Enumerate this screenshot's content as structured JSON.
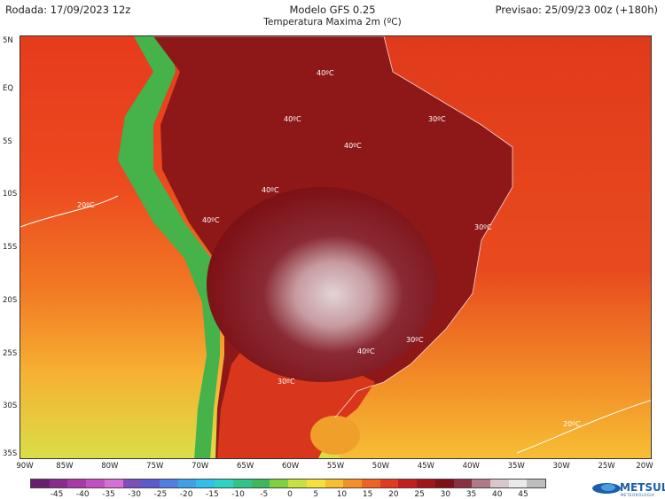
{
  "header": {
    "run": "Rodada: 17/09/2023 12z",
    "model": "Modelo GFS 0.25",
    "variable": "Temperatura Maxima 2m (ºC)",
    "forecast": "Previsao: 25/09/23 00z (+180h)"
  },
  "map": {
    "lat_labels": [
      "5N",
      "EQ",
      "5S",
      "10S",
      "15S",
      "20S",
      "25S",
      "30S",
      "35S"
    ],
    "lon_labels": [
      "90W",
      "85W",
      "80W",
      "75W",
      "70W",
      "65W",
      "60W",
      "55W",
      "50W",
      "45W",
      "40W",
      "35W",
      "30W",
      "25W",
      "20W"
    ],
    "contour_labels": [
      "20ºC",
      "20ºC",
      "30ºC",
      "30ºC",
      "30ºC",
      "30ºC",
      "40ºC",
      "40ºC",
      "40ºC",
      "40ºC",
      "40ºC",
      "40ºC"
    ]
  },
  "colorbar": {
    "labels": [
      "-45",
      "-40",
      "-35",
      "-30",
      "-25",
      "-20",
      "-15",
      "-10",
      "-5",
      "0",
      "5",
      "10",
      "15",
      "20",
      "25",
      "30",
      "35",
      "40",
      "45"
    ],
    "colors": [
      "#6a1f6e",
      "#8b2a8e",
      "#a83aa8",
      "#c44fc4",
      "#d76fd7",
      "#7d4fb8",
      "#5a5ad0",
      "#4f7fe0",
      "#3fa0ea",
      "#30c0f0",
      "#2bd4c4",
      "#2ec48a",
      "#3cb85a",
      "#7fcf3f",
      "#c8e040",
      "#f4e23a",
      "#f7bf2e",
      "#f59025",
      "#ef6220",
      "#e23a1d",
      "#c41f1c",
      "#a0141a",
      "#7e1018",
      "#8a3040",
      "#b07a86",
      "#d8c8cc",
      "#eaeaea",
      "#bdbdbd"
    ]
  },
  "logo": {
    "name": "METSUL",
    "sub": "METEOROLOGIA"
  },
  "colors": {
    "ocean_warm": "#e8391e",
    "ocean_hot": "#d52a18",
    "land_hot": "#8e1818",
    "land_extreme": "#dcc9cd"
  }
}
